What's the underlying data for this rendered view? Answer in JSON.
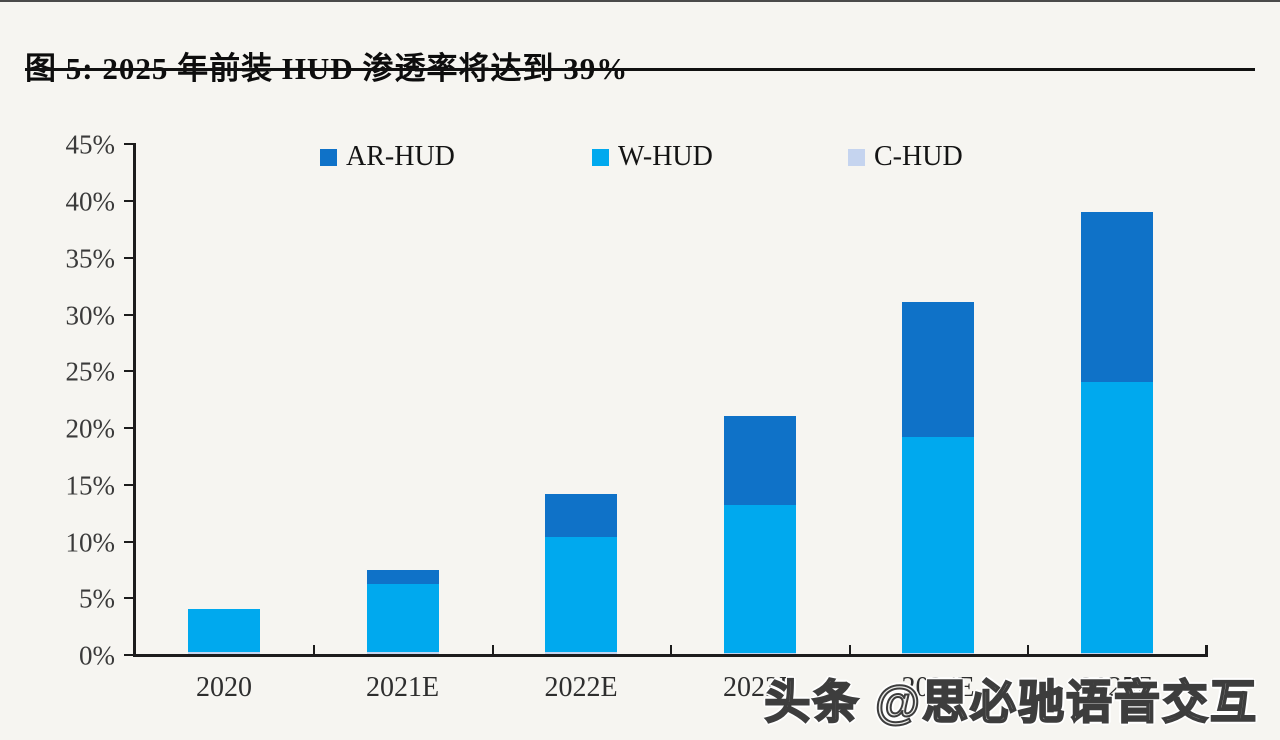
{
  "page": {
    "title": "图 5: 2025 年前装 HUD 渗透率将达到 39%",
    "watermark": "头条 @思必驰语音交互"
  },
  "colors": {
    "ar_hud": "#0f72c8",
    "w_hud": "#00a9ee",
    "c_hud": "#c5d4ef",
    "axis": "#1c1c1c",
    "background": "#f6f5f1"
  },
  "legend": {
    "items": [
      {
        "label": "AR-HUD",
        "color_key": "ar_hud"
      },
      {
        "label": "W-HUD",
        "color_key": "w_hud"
      },
      {
        "label": "C-HUD",
        "color_key": "c_hud"
      }
    ]
  },
  "chart_data": {
    "type": "bar",
    "stacked": true,
    "title": "2025 年前装 HUD 渗透率将达到 39%",
    "categories": [
      "2020",
      "2021E",
      "2022E",
      "2023E",
      "2024E",
      "2025E"
    ],
    "series": [
      {
        "name": "C-HUD",
        "color_key": "c_hud",
        "values": [
          0.2,
          0.2,
          0.2,
          0.1,
          0.1,
          0.1
        ]
      },
      {
        "name": "W-HUD",
        "color_key": "w_hud",
        "values": [
          3.8,
          6.0,
          10.1,
          13.0,
          19.0,
          23.9
        ]
      },
      {
        "name": "AR-HUD",
        "color_key": "ar_hud",
        "values": [
          0,
          1.2,
          3.8,
          7.9,
          11.9,
          14.9
        ]
      }
    ],
    "totals": [
      4.0,
      7.4,
      14.1,
      21.0,
      31.0,
      38.9
    ],
    "xlabel": "",
    "ylabel": "",
    "ylim": [
      0,
      45
    ],
    "y_tick_step": 5,
    "y_tick_labels": [
      "0%",
      "5%",
      "10%",
      "15%",
      "20%",
      "25%",
      "30%",
      "35%",
      "40%",
      "45%"
    ],
    "grid": false,
    "legend_position": "top"
  }
}
